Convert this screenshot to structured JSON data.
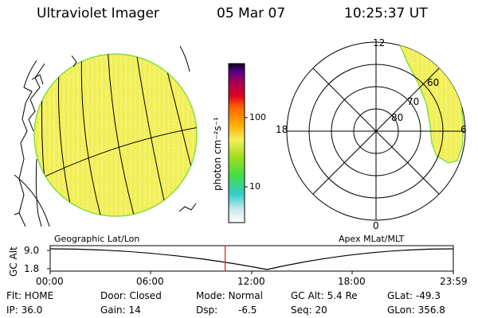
{
  "header": {
    "instrument": "Ultraviolet Imager",
    "date": "05 Mar 07",
    "time": "10:25:37 UT"
  },
  "left_panel": {
    "label": "Geographic Lat/Lon"
  },
  "right_panel": {
    "label": "Apex MLat/MLT",
    "mlt_labels": [
      "12",
      "18",
      "6",
      "0"
    ],
    "mlat_labels": [
      "60",
      "70",
      "80"
    ]
  },
  "colorbar": {
    "unit_label": "photon cm⁻²s⁻¹",
    "ticks": [
      "100",
      "10"
    ]
  },
  "altitude_plot": {
    "ylabel": "GC Alt",
    "yticks": [
      "9.0",
      "1.8"
    ],
    "xticks": [
      "00:00",
      "06:00",
      "12:00",
      "18:00",
      "23:59"
    ],
    "current_time_fraction": 0.434
  },
  "status": {
    "flt": "Flt: HOME",
    "ip": "IP: 36.0",
    "door": "Door: Closed",
    "gain": "Gain: 14",
    "mode": "Mode: Normal",
    "dsp_label": "Dsp:",
    "dsp_value": "-6.5",
    "gc_alt": "GC Alt: 5.4 Re",
    "seq": "Seq: 20",
    "glat": "GLat: -49.3",
    "glon": "GLon: 356.8"
  },
  "colors": {
    "aurora_fill": "#f2f05a",
    "aurora_edge": "#88dd44",
    "current_time_marker": "#cc2222"
  }
}
